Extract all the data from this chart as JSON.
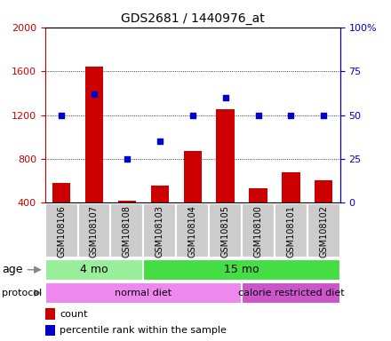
{
  "title": "GDS2681 / 1440976_at",
  "samples": [
    "GSM108106",
    "GSM108107",
    "GSM108108",
    "GSM108103",
    "GSM108104",
    "GSM108105",
    "GSM108100",
    "GSM108101",
    "GSM108102"
  ],
  "counts": [
    580,
    1640,
    420,
    560,
    870,
    1250,
    530,
    680,
    610
  ],
  "percentile_ranks": [
    50,
    62,
    25,
    35,
    50,
    60,
    50,
    50,
    50
  ],
  "count_color": "#cc0000",
  "percentile_color": "#0000cc",
  "ylim_left": [
    400,
    2000
  ],
  "ylim_right": [
    0,
    100
  ],
  "yticks_left": [
    400,
    800,
    1200,
    1600,
    2000
  ],
  "yticks_right": [
    0,
    25,
    50,
    75,
    100
  ],
  "ytick_labels_right": [
    "0",
    "25",
    "50",
    "75",
    "100%"
  ],
  "age_groups": [
    {
      "label": "4 mo",
      "start": 0,
      "end": 3,
      "color": "#99ee99"
    },
    {
      "label": "15 mo",
      "start": 3,
      "end": 9,
      "color": "#44dd44"
    }
  ],
  "protocol_groups": [
    {
      "label": "normal diet",
      "start": 0,
      "end": 6,
      "color": "#ee88ee"
    },
    {
      "label": "calorie restricted diet",
      "start": 6,
      "end": 9,
      "color": "#cc55cc"
    }
  ],
  "tick_label_color_left": "#cc0000",
  "tick_label_color_right": "#0000cc",
  "sample_box_color": "#cccccc",
  "sample_box_edge": "#ffffff"
}
